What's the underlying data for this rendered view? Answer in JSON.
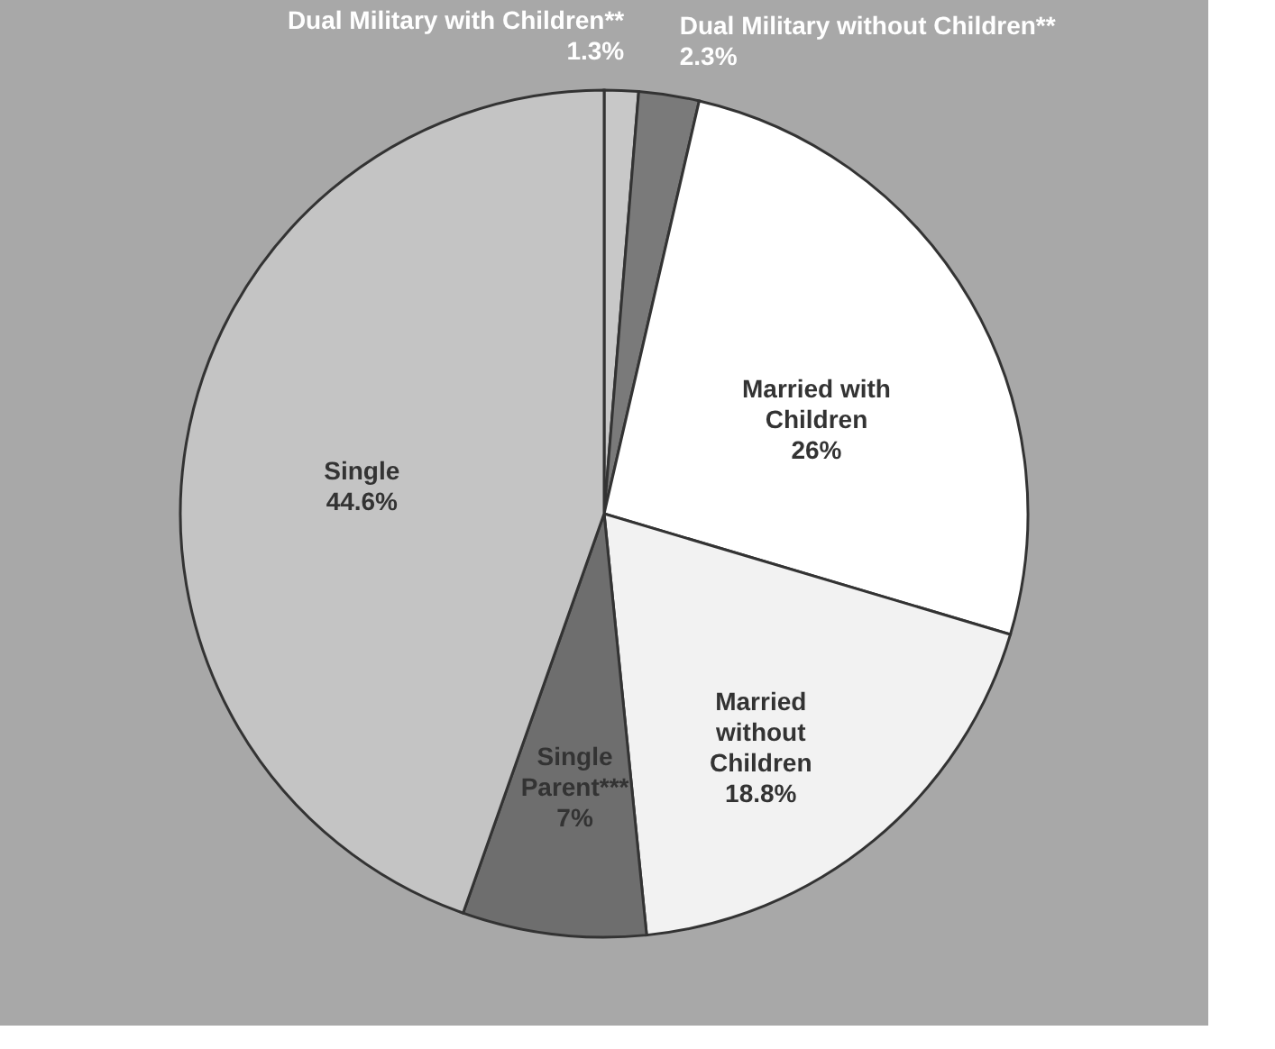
{
  "chart_data": {
    "type": "pie",
    "categories": [
      "Dual Military with Children**",
      "Dual Military without Children**",
      "Married with Children",
      "Married without Children",
      "Single Parent***",
      "Single"
    ],
    "values": [
      1.3,
      2.3,
      26,
      18.8,
      7,
      44.6
    ],
    "value_labels": [
      "1.3%",
      "2.3%",
      "26%",
      "18.8%",
      "7%",
      "44.6%"
    ],
    "colors": [
      "#c8c8c8",
      "#7a7a7a",
      "#ffffff",
      "#f2f2f2",
      "#6e6e6e",
      "#c4c4c4"
    ],
    "legend": false
  }
}
